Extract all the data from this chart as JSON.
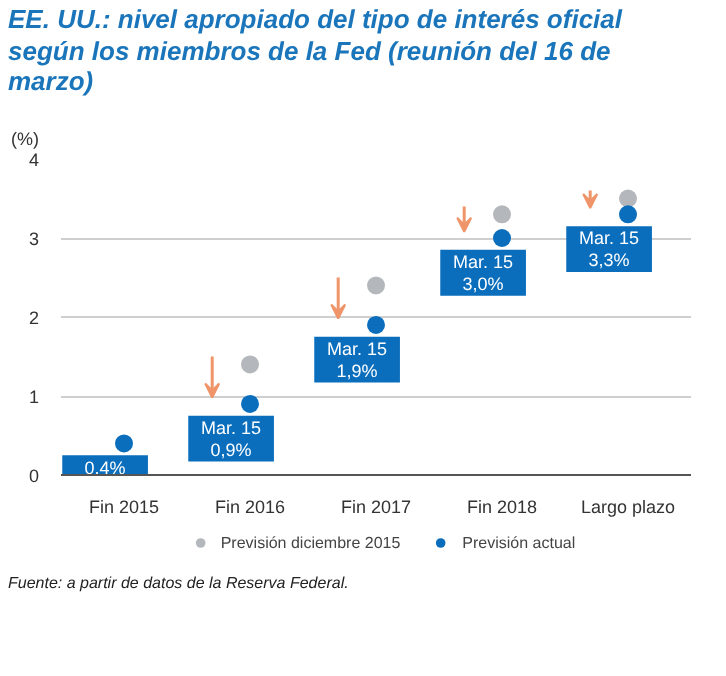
{
  "chart_data": {
    "type": "scatter",
    "title": "EE. UU.: nivel apropiado del tipo de interés oficial según los miembros de la Fed (reunión del 16 de marzo)",
    "ylabel": "(%)",
    "categories": [
      "Fin 2015",
      "Fin 2016",
      "Fin 2017",
      "Fin 2018",
      "Largo plazo"
    ],
    "series": [
      {
        "name": "Previsión diciembre 2015",
        "color": "#b4b8bc",
        "values": [
          null,
          1.4,
          2.4,
          3.3,
          3.5
        ]
      },
      {
        "name": "Previsión actual",
        "color": "#0a6ebd",
        "values": [
          0.4,
          0.9,
          1.9,
          3.0,
          3.3
        ],
        "value_labels": [
          "0,4%",
          "Mar. 15\n0,9%",
          "Mar. 15\n1,9%",
          "Mar. 15\n3,0%",
          "Mar. 15\n3,3%"
        ]
      }
    ],
    "ylim": [
      0,
      4
    ],
    "yticks": [
      0,
      1,
      2,
      3,
      4
    ],
    "grid": "y",
    "legend": "bottom",
    "marker": "circle",
    "annotations": [
      "Fuente: a partir de datos de la Reserva Federal."
    ]
  }
}
